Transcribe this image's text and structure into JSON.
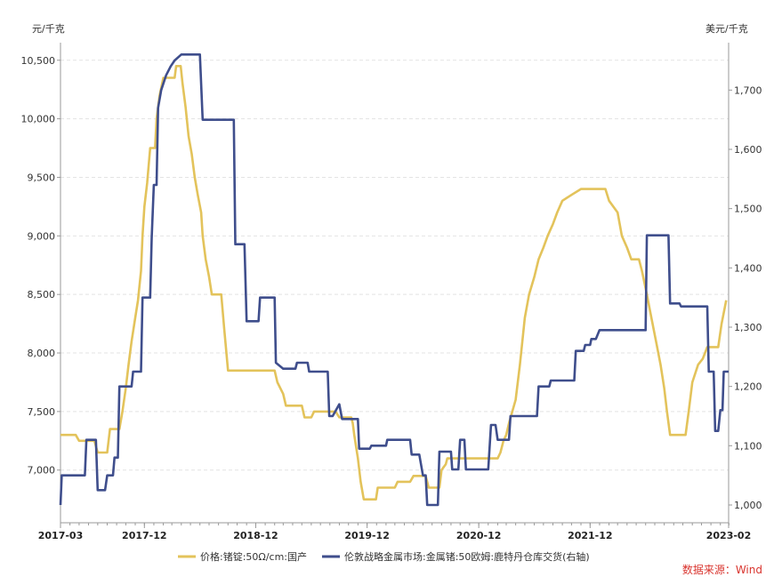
{
  "colors": {
    "gold": "#E3C35B",
    "navy": "#3F4E8C",
    "axis": "#999999",
    "grid": "#E3E3E3",
    "source": "#D9352F"
  },
  "chart_data": {
    "type": "line",
    "left_unit": "元/千克",
    "right_unit": "美元/千克",
    "left_axis": {
      "min": 6550,
      "max": 10650,
      "ticks": [
        7000,
        7500,
        8000,
        8500,
        9000,
        9500,
        10000,
        10500
      ],
      "tick_labels": [
        "7,000",
        "7,500",
        "8,000",
        "8,500",
        "9,000",
        "9,500",
        "10,000",
        "10,500"
      ]
    },
    "right_axis": {
      "min": 970,
      "max": 1780,
      "ticks": [
        1000,
        1100,
        1200,
        1300,
        1400,
        1500,
        1600,
        1700
      ],
      "tick_labels": [
        "1,000",
        "1,100",
        "1,200",
        "1,300",
        "1,400",
        "1,500",
        "1,600",
        "1,700"
      ]
    },
    "x_axis": {
      "min": "2017-03-01",
      "max": "2023-02-28",
      "ticks": [
        {
          "date": "2017-03-01",
          "label": "2017-03"
        },
        {
          "date": "2017-12-01",
          "label": "2017-12"
        },
        {
          "date": "2018-12-01",
          "label": "2018-12"
        },
        {
          "date": "2019-12-01",
          "label": "2019-12"
        },
        {
          "date": "2020-12-01",
          "label": "2020-12"
        },
        {
          "date": "2021-12-01",
          "label": "2021-12"
        },
        {
          "date": "2023-02-28",
          "label": "2023-02"
        }
      ]
    },
    "grid": true,
    "legend_position": "bottom",
    "series": [
      {
        "name": "价格:锗锭:50Ω/cm:国产",
        "axis": "left",
        "color": "#E3C35B",
        "points": [
          [
            "2017-03-01",
            7300
          ],
          [
            "2017-04-20",
            7300
          ],
          [
            "2017-05-01",
            7250
          ],
          [
            "2017-06-20",
            7250
          ],
          [
            "2017-07-01",
            7150
          ],
          [
            "2017-08-01",
            7150
          ],
          [
            "2017-08-10",
            7350
          ],
          [
            "2017-09-10",
            7350
          ],
          [
            "2017-09-20",
            7500
          ],
          [
            "2017-10-01",
            7700
          ],
          [
            "2017-10-10",
            7900
          ],
          [
            "2017-10-20",
            8100
          ],
          [
            "2017-11-01",
            8300
          ],
          [
            "2017-11-10",
            8450
          ],
          [
            "2017-11-20",
            8700
          ],
          [
            "2017-11-25",
            9000
          ],
          [
            "2017-12-01",
            9250
          ],
          [
            "2017-12-10",
            9450
          ],
          [
            "2017-12-20",
            9750
          ],
          [
            "2018-01-05",
            9750
          ],
          [
            "2018-01-10",
            10000
          ],
          [
            "2018-01-20",
            10200
          ],
          [
            "2018-02-01",
            10350
          ],
          [
            "2018-03-10",
            10350
          ],
          [
            "2018-03-15",
            10450
          ],
          [
            "2018-03-30",
            10450
          ],
          [
            "2018-04-05",
            10300
          ],
          [
            "2018-04-15",
            10100
          ],
          [
            "2018-04-25",
            9850
          ],
          [
            "2018-05-05",
            9700
          ],
          [
            "2018-05-15",
            9500
          ],
          [
            "2018-05-25",
            9350
          ],
          [
            "2018-06-05",
            9200
          ],
          [
            "2018-06-10",
            9000
          ],
          [
            "2018-06-20",
            8800
          ],
          [
            "2018-07-01",
            8650
          ],
          [
            "2018-07-10",
            8500
          ],
          [
            "2018-08-10",
            8500
          ],
          [
            "2018-08-20",
            8200
          ],
          [
            "2018-08-25",
            8050
          ],
          [
            "2018-09-01",
            7850
          ],
          [
            "2018-11-01",
            7850
          ],
          [
            "2018-11-20",
            7850
          ],
          [
            "2019-02-01",
            7850
          ],
          [
            "2019-02-10",
            7750
          ],
          [
            "2019-03-01",
            7650
          ],
          [
            "2019-03-10",
            7550
          ],
          [
            "2019-05-01",
            7550
          ],
          [
            "2019-05-10",
            7450
          ],
          [
            "2019-06-01",
            7450
          ],
          [
            "2019-06-10",
            7500
          ],
          [
            "2019-08-20",
            7500
          ],
          [
            "2019-09-01",
            7450
          ],
          [
            "2019-10-10",
            7450
          ],
          [
            "2019-10-15",
            7400
          ],
          [
            "2019-10-20",
            7300
          ],
          [
            "2019-11-01",
            7100
          ],
          [
            "2019-11-10",
            6900
          ],
          [
            "2019-11-20",
            6750
          ],
          [
            "2019-12-30",
            6750
          ],
          [
            "2020-01-05",
            6850
          ],
          [
            "2020-03-01",
            6850
          ],
          [
            "2020-03-10",
            6900
          ],
          [
            "2020-04-20",
            6900
          ],
          [
            "2020-05-01",
            6950
          ],
          [
            "2020-06-10",
            6950
          ],
          [
            "2020-06-20",
            6850
          ],
          [
            "2020-07-25",
            6850
          ],
          [
            "2020-08-01",
            7000
          ],
          [
            "2020-08-15",
            7050
          ],
          [
            "2020-08-20",
            7100
          ],
          [
            "2021-02-01",
            7100
          ],
          [
            "2021-02-10",
            7150
          ],
          [
            "2021-02-20",
            7250
          ],
          [
            "2021-03-01",
            7300
          ],
          [
            "2021-03-10",
            7400
          ],
          [
            "2021-04-01",
            7600
          ],
          [
            "2021-04-15",
            7900
          ],
          [
            "2021-05-01",
            8300
          ],
          [
            "2021-05-15",
            8500
          ],
          [
            "2021-06-01",
            8650
          ],
          [
            "2021-06-15",
            8800
          ],
          [
            "2021-07-01",
            8900
          ],
          [
            "2021-07-15",
            9000
          ],
          [
            "2021-08-01",
            9100
          ],
          [
            "2021-08-15",
            9200
          ],
          [
            "2021-09-01",
            9300
          ],
          [
            "2021-10-01",
            9350
          ],
          [
            "2021-11-01",
            9400
          ],
          [
            "2022-01-20",
            9400
          ],
          [
            "2022-02-01",
            9300
          ],
          [
            "2022-03-01",
            9200
          ],
          [
            "2022-03-15",
            9000
          ],
          [
            "2022-04-01",
            8900
          ],
          [
            "2022-04-15",
            8800
          ],
          [
            "2022-05-10",
            8800
          ],
          [
            "2022-05-20",
            8700
          ],
          [
            "2022-06-05",
            8500
          ],
          [
            "2022-06-20",
            8300
          ],
          [
            "2022-07-05",
            8100
          ],
          [
            "2022-07-20",
            7900
          ],
          [
            "2022-08-01",
            7700
          ],
          [
            "2022-08-10",
            7500
          ],
          [
            "2022-08-20",
            7300
          ],
          [
            "2022-10-10",
            7300
          ],
          [
            "2022-10-20",
            7500
          ],
          [
            "2022-11-01",
            7750
          ],
          [
            "2022-11-20",
            7900
          ],
          [
            "2022-12-05",
            7950
          ],
          [
            "2022-12-20",
            8050
          ],
          [
            "2023-01-25",
            8050
          ],
          [
            "2023-02-05",
            8250
          ],
          [
            "2023-02-20",
            8450
          ]
        ]
      },
      {
        "name": "伦敦战略金属市场:金属锗:50欧姆:鹿特丹仓库交货(右轴)",
        "axis": "right",
        "color": "#3F4E8C",
        "points": [
          [
            "2017-03-01",
            1000
          ],
          [
            "2017-03-05",
            1050
          ],
          [
            "2017-05-20",
            1050
          ],
          [
            "2017-05-25",
            1110
          ],
          [
            "2017-06-25",
            1110
          ],
          [
            "2017-07-01",
            1025
          ],
          [
            "2017-07-25",
            1025
          ],
          [
            "2017-08-01",
            1050
          ],
          [
            "2017-08-20",
            1050
          ],
          [
            "2017-08-25",
            1080
          ],
          [
            "2017-09-05",
            1080
          ],
          [
            "2017-09-10",
            1200
          ],
          [
            "2017-10-20",
            1200
          ],
          [
            "2017-10-25",
            1225
          ],
          [
            "2017-11-20",
            1225
          ],
          [
            "2017-11-25",
            1350
          ],
          [
            "2017-12-20",
            1350
          ],
          [
            "2017-12-25",
            1450
          ],
          [
            "2018-01-01",
            1540
          ],
          [
            "2018-01-10",
            1540
          ],
          [
            "2018-01-15",
            1670
          ],
          [
            "2018-01-25",
            1700
          ],
          [
            "2018-02-10",
            1725
          ],
          [
            "2018-02-25",
            1740
          ],
          [
            "2018-03-10",
            1750
          ],
          [
            "2018-04-01",
            1760
          ],
          [
            "2018-06-01",
            1760
          ],
          [
            "2018-06-10",
            1650
          ],
          [
            "2018-09-20",
            1650
          ],
          [
            "2018-09-25",
            1440
          ],
          [
            "2018-10-25",
            1440
          ],
          [
            "2018-11-01",
            1310
          ],
          [
            "2018-12-10",
            1310
          ],
          [
            "2018-12-15",
            1350
          ],
          [
            "2019-02-01",
            1350
          ],
          [
            "2019-02-05",
            1240
          ],
          [
            "2019-03-01",
            1230
          ],
          [
            "2019-04-10",
            1230
          ],
          [
            "2019-04-15",
            1240
          ],
          [
            "2019-05-20",
            1240
          ],
          [
            "2019-05-25",
            1225
          ],
          [
            "2019-07-25",
            1225
          ],
          [
            "2019-07-30",
            1150
          ],
          [
            "2019-08-10",
            1150
          ],
          [
            "2019-09-01",
            1170
          ],
          [
            "2019-09-10",
            1145
          ],
          [
            "2019-11-01",
            1145
          ],
          [
            "2019-11-05",
            1095
          ],
          [
            "2019-12-10",
            1095
          ],
          [
            "2019-12-15",
            1100
          ],
          [
            "2020-02-01",
            1100
          ],
          [
            "2020-02-05",
            1110
          ],
          [
            "2020-04-20",
            1110
          ],
          [
            "2020-04-25",
            1085
          ],
          [
            "2020-05-20",
            1085
          ],
          [
            "2020-06-01",
            1050
          ],
          [
            "2020-06-10",
            1050
          ],
          [
            "2020-06-15",
            1000
          ],
          [
            "2020-07-20",
            1000
          ],
          [
            "2020-07-25",
            1090
          ],
          [
            "2020-09-01",
            1090
          ],
          [
            "2020-09-05",
            1060
          ],
          [
            "2020-09-25",
            1060
          ],
          [
            "2020-10-01",
            1110
          ],
          [
            "2020-10-15",
            1110
          ],
          [
            "2020-10-20",
            1060
          ],
          [
            "2021-01-01",
            1060
          ],
          [
            "2021-01-10",
            1135
          ],
          [
            "2021-01-25",
            1135
          ],
          [
            "2021-02-01",
            1110
          ],
          [
            "2021-03-10",
            1110
          ],
          [
            "2021-03-15",
            1150
          ],
          [
            "2021-06-10",
            1150
          ],
          [
            "2021-06-15",
            1200
          ],
          [
            "2021-07-20",
            1200
          ],
          [
            "2021-07-25",
            1210
          ],
          [
            "2021-10-10",
            1210
          ],
          [
            "2021-10-15",
            1260
          ],
          [
            "2021-11-10",
            1260
          ],
          [
            "2021-11-15",
            1270
          ],
          [
            "2021-12-01",
            1270
          ],
          [
            "2021-12-05",
            1280
          ],
          [
            "2021-12-20",
            1280
          ],
          [
            "2022-01-01",
            1295
          ],
          [
            "2022-06-01",
            1295
          ],
          [
            "2022-06-05",
            1455
          ],
          [
            "2022-08-15",
            1455
          ],
          [
            "2022-08-20",
            1340
          ],
          [
            "2022-09-20",
            1340
          ],
          [
            "2022-09-25",
            1335
          ],
          [
            "2022-12-20",
            1335
          ],
          [
            "2022-12-25",
            1225
          ],
          [
            "2023-01-10",
            1225
          ],
          [
            "2023-01-15",
            1125
          ],
          [
            "2023-01-25",
            1125
          ],
          [
            "2023-02-01",
            1160
          ],
          [
            "2023-02-08",
            1160
          ],
          [
            "2023-02-12",
            1225
          ],
          [
            "2023-02-28",
            1225
          ]
        ]
      }
    ]
  },
  "source_text": "数据来源：Wind"
}
